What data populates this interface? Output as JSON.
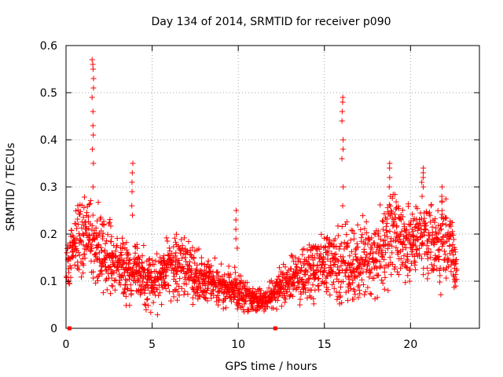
{
  "chart_data": {
    "type": "scatter",
    "title": "Day 134 of 2014, SRMTID for receiver p090",
    "xlabel": "GPS time / hours",
    "ylabel": "SRMTID / TECUs",
    "xlim": [
      0,
      24
    ],
    "ylim": [
      0,
      0.6
    ],
    "x_ticks": [
      0,
      5,
      10,
      15,
      20
    ],
    "x_tick_labels": [
      "0",
      "5",
      "10",
      "15",
      "20"
    ],
    "y_ticks": [
      0,
      0.1,
      0.2,
      0.3,
      0.4,
      0.5,
      0.6
    ],
    "y_tick_labels": [
      "0",
      "0.1",
      "0.2",
      "0.3",
      "0.4",
      "0.5",
      "0.6"
    ],
    "grid": true,
    "marker": "+",
    "series_color": "#ff0000",
    "trend": {
      "x": [
        0,
        0.5,
        1,
        1.5,
        2,
        2.5,
        3,
        3.5,
        4,
        4.5,
        5,
        5.5,
        6,
        6.5,
        7,
        7.5,
        8,
        8.5,
        9,
        9.5,
        10,
        10.5,
        11,
        11.5,
        12,
        12.5,
        13,
        13.5,
        14,
        14.5,
        15,
        15.5,
        16,
        16.5,
        17,
        17.5,
        18,
        18.5,
        19,
        19.5,
        20,
        20.5,
        21,
        21.5,
        22,
        22.5,
        22.7
      ],
      "y": [
        0.12,
        0.18,
        0.2,
        0.19,
        0.17,
        0.15,
        0.13,
        0.12,
        0.12,
        0.11,
        0.1,
        0.11,
        0.13,
        0.14,
        0.13,
        0.11,
        0.1,
        0.09,
        0.09,
        0.09,
        0.08,
        0.07,
        0.06,
        0.06,
        0.07,
        0.09,
        0.1,
        0.11,
        0.12,
        0.13,
        0.13,
        0.14,
        0.14,
        0.13,
        0.14,
        0.15,
        0.15,
        0.17,
        0.19,
        0.17,
        0.19,
        0.2,
        0.19,
        0.18,
        0.19,
        0.15,
        0.11
      ],
      "spread": [
        0.05,
        0.07,
        0.09,
        0.08,
        0.08,
        0.07,
        0.06,
        0.06,
        0.06,
        0.05,
        0.05,
        0.05,
        0.06,
        0.07,
        0.06,
        0.05,
        0.04,
        0.04,
        0.04,
        0.04,
        0.04,
        0.03,
        0.02,
        0.02,
        0.03,
        0.04,
        0.04,
        0.05,
        0.05,
        0.06,
        0.06,
        0.07,
        0.07,
        0.07,
        0.07,
        0.08,
        0.08,
        0.09,
        0.09,
        0.08,
        0.07,
        0.07,
        0.07,
        0.07,
        0.08,
        0.06,
        0.04
      ]
    },
    "spikes": [
      {
        "x": 1.55,
        "y_values": [
          0.57,
          0.56,
          0.55,
          0.53,
          0.51,
          0.49,
          0.46,
          0.43,
          0.41,
          0.38,
          0.35,
          0.3
        ]
      },
      {
        "x": 3.85,
        "y_values": [
          0.35,
          0.33,
          0.31,
          0.29,
          0.26,
          0.24
        ]
      },
      {
        "x": 9.9,
        "y_values": [
          0.25,
          0.23,
          0.21,
          0.19,
          0.17
        ]
      },
      {
        "x": 16.05,
        "y_values": [
          0.49,
          0.48,
          0.46,
          0.44,
          0.4,
          0.38,
          0.36,
          0.3,
          0.26
        ]
      },
      {
        "x": 18.8,
        "y_values": [
          0.35,
          0.34,
          0.32,
          0.3,
          0.28
        ]
      },
      {
        "x": 20.7,
        "y_values": [
          0.34,
          0.33,
          0.32,
          0.31,
          0.3,
          0.28
        ]
      },
      {
        "x": 21.85,
        "y_values": [
          0.3,
          0.28,
          0.27,
          0.25
        ]
      }
    ],
    "axis_markers": [
      {
        "x": 0.2,
        "y": 0
      },
      {
        "x": 12.15,
        "y": 0
      }
    ]
  }
}
